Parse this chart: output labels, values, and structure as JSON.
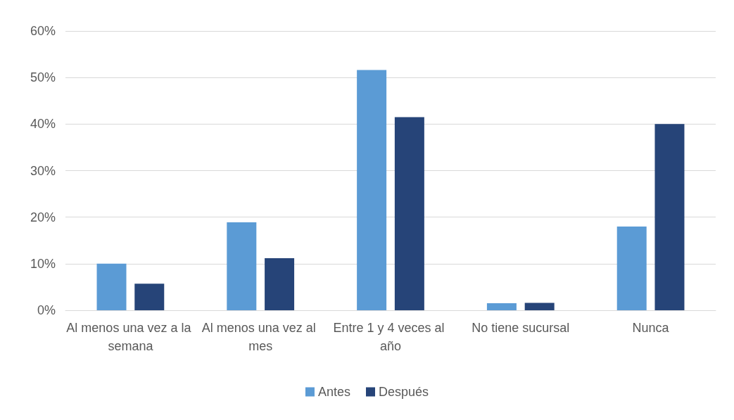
{
  "chart_data": {
    "type": "bar",
    "categories": [
      "Al menos una vez a la semana",
      "Al menos una vez al mes",
      "Entre 1 y 4 veces al año",
      "No tiene sucursal",
      "Nunca"
    ],
    "series": [
      {
        "name": "Antes",
        "color": "#5b9bd5",
        "values": [
          10,
          18.9,
          51.6,
          1.5,
          18
        ]
      },
      {
        "name": "Después",
        "color": "#264478",
        "values": [
          5.7,
          11.2,
          41.5,
          1.6,
          40
        ]
      }
    ],
    "ylim": [
      0,
      60
    ],
    "yticks": [
      {
        "value": 0,
        "label": "0%"
      },
      {
        "value": 10,
        "label": "10%"
      },
      {
        "value": 20,
        "label": "20%"
      },
      {
        "value": 30,
        "label": "30%"
      },
      {
        "value": 40,
        "label": "40%"
      },
      {
        "value": 50,
        "label": "50%"
      },
      {
        "value": 60,
        "label": "60%"
      }
    ],
    "grid": "y",
    "legend": "bottom"
  }
}
